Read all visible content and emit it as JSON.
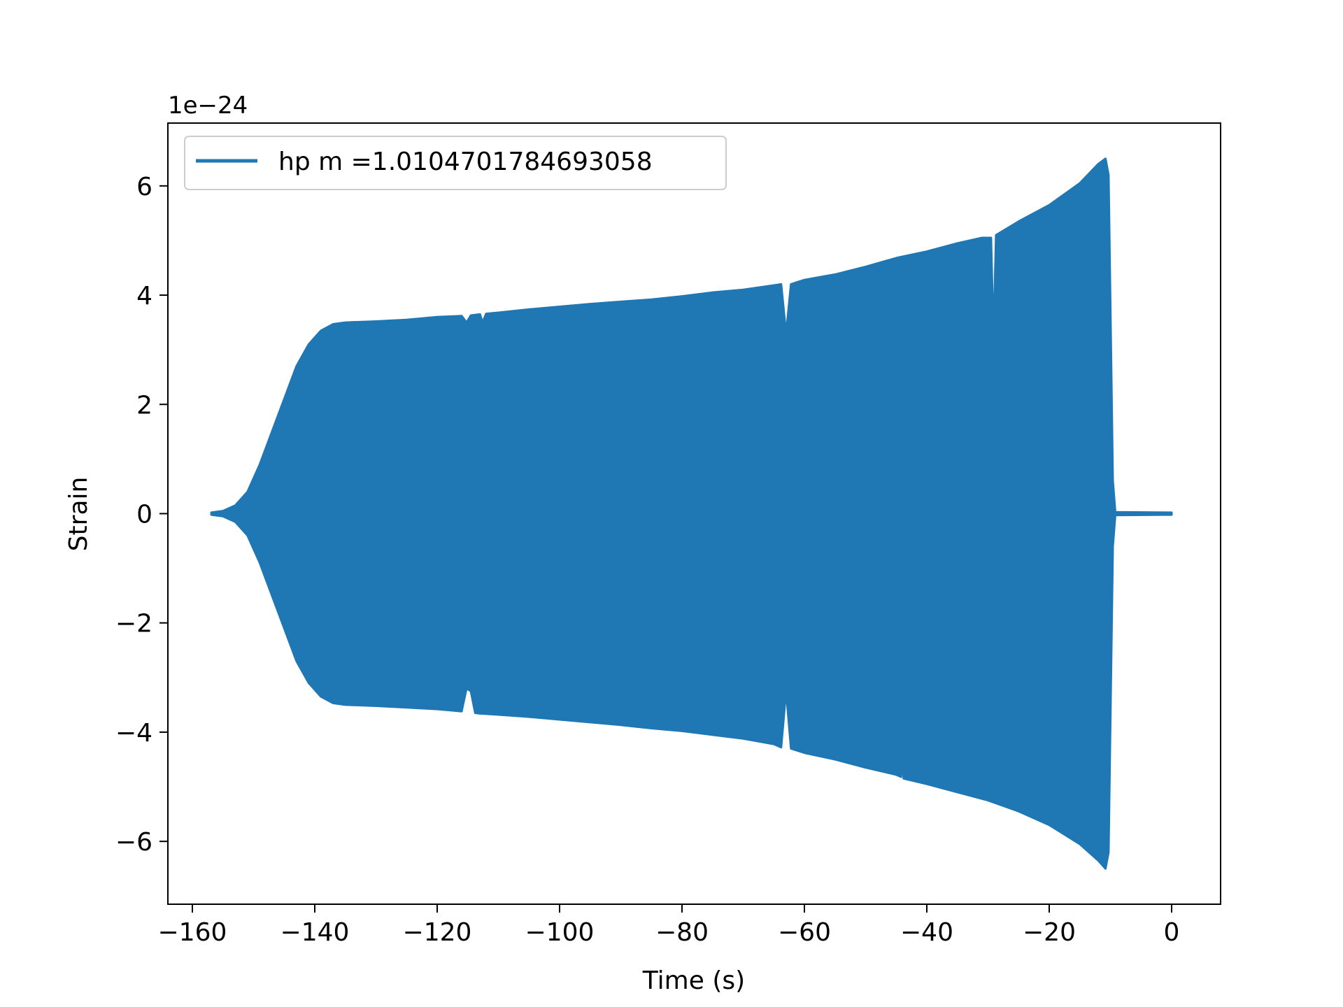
{
  "chart_data": {
    "type": "area",
    "title": "",
    "xlabel": "Time (s)",
    "ylabel": "Strain",
    "y_scale_label": "1e−24",
    "xlim": [
      -164,
      8
    ],
    "ylim": [
      -7.15,
      7.15
    ],
    "x_ticks": [
      -160,
      -140,
      -120,
      -100,
      -80,
      -60,
      -40,
      -20,
      0
    ],
    "x_tick_labels": [
      "−160",
      "−140",
      "−120",
      "−100",
      "−80",
      "−60",
      "−40",
      "−20",
      "0"
    ],
    "y_ticks": [
      -6,
      -4,
      -2,
      0,
      2,
      4,
      6
    ],
    "y_tick_labels": [
      "−6",
      "−4",
      "−2",
      "0",
      "2",
      "4",
      "6"
    ],
    "grid": false,
    "legend_position": "top-left",
    "series": [
      {
        "name": "hp m =1.0104701784693058",
        "color": "#1f77b4",
        "envelope_upper": [
          [
            -156.9,
            0.02
          ],
          [
            -155,
            0.05
          ],
          [
            -153,
            0.15
          ],
          [
            -151,
            0.4
          ],
          [
            -149,
            0.9
          ],
          [
            -147,
            1.5
          ],
          [
            -145,
            2.1
          ],
          [
            -143,
            2.7
          ],
          [
            -141,
            3.1
          ],
          [
            -139,
            3.35
          ],
          [
            -137,
            3.47
          ],
          [
            -135,
            3.5
          ],
          [
            -130,
            3.52
          ],
          [
            -125,
            3.55
          ],
          [
            -120,
            3.6
          ],
          [
            -116,
            3.62
          ],
          [
            -115.2,
            3.5
          ],
          [
            -114.5,
            3.63
          ],
          [
            -113,
            3.65
          ],
          [
            -112.6,
            3.5
          ],
          [
            -112,
            3.66
          ],
          [
            -110,
            3.68
          ],
          [
            -105,
            3.74
          ],
          [
            -100,
            3.79
          ],
          [
            -95,
            3.84
          ],
          [
            -90,
            3.88
          ],
          [
            -85,
            3.92
          ],
          [
            -80,
            3.98
          ],
          [
            -75,
            4.05
          ],
          [
            -70,
            4.1
          ],
          [
            -65,
            4.18
          ],
          [
            -63.8,
            4.2
          ],
          [
            -63,
            3.3
          ],
          [
            -62.2,
            4.2
          ],
          [
            -60,
            4.28
          ],
          [
            -55,
            4.38
          ],
          [
            -50,
            4.52
          ],
          [
            -45,
            4.68
          ],
          [
            -40,
            4.8
          ],
          [
            -35,
            4.95
          ],
          [
            -31,
            5.05
          ],
          [
            -29.5,
            5.05
          ],
          [
            -29.1,
            3.2
          ],
          [
            -28.7,
            5.1
          ],
          [
            -25,
            5.35
          ],
          [
            -20,
            5.65
          ],
          [
            -15,
            6.05
          ],
          [
            -12,
            6.4
          ],
          [
            -10.8,
            6.5
          ],
          [
            -10.3,
            6.2
          ],
          [
            -9.6,
            0.6
          ],
          [
            -9.2,
            0.03
          ],
          [
            0,
            0.02
          ]
        ],
        "envelope_lower": [
          [
            -156.9,
            -0.02
          ],
          [
            -155,
            -0.05
          ],
          [
            -153,
            -0.15
          ],
          [
            -151,
            -0.4
          ],
          [
            -149,
            -0.9
          ],
          [
            -147,
            -1.5
          ],
          [
            -145,
            -2.1
          ],
          [
            -143,
            -2.7
          ],
          [
            -141,
            -3.1
          ],
          [
            -139,
            -3.35
          ],
          [
            -137,
            -3.47
          ],
          [
            -135,
            -3.5
          ],
          [
            -130,
            -3.52
          ],
          [
            -125,
            -3.55
          ],
          [
            -120,
            -3.58
          ],
          [
            -116,
            -3.62
          ],
          [
            -115.2,
            -3.2
          ],
          [
            -114.5,
            -3.25
          ],
          [
            -113.8,
            -3.65
          ],
          [
            -113,
            -3.66
          ],
          [
            -110,
            -3.68
          ],
          [
            -105,
            -3.72
          ],
          [
            -100,
            -3.77
          ],
          [
            -95,
            -3.82
          ],
          [
            -90,
            -3.87
          ],
          [
            -85,
            -3.93
          ],
          [
            -80,
            -3.98
          ],
          [
            -75,
            -4.05
          ],
          [
            -70,
            -4.12
          ],
          [
            -65,
            -4.22
          ],
          [
            -63.8,
            -4.28
          ],
          [
            -63,
            -3.25
          ],
          [
            -62.2,
            -4.3
          ],
          [
            -60,
            -4.38
          ],
          [
            -55,
            -4.5
          ],
          [
            -50,
            -4.65
          ],
          [
            -45,
            -4.78
          ],
          [
            -44.2,
            -4.82
          ],
          [
            -44,
            -4.3
          ],
          [
            -43.8,
            -4.85
          ],
          [
            -40,
            -4.95
          ],
          [
            -35,
            -5.1
          ],
          [
            -30,
            -5.25
          ],
          [
            -25,
            -5.45
          ],
          [
            -20,
            -5.7
          ],
          [
            -15,
            -6.05
          ],
          [
            -12,
            -6.35
          ],
          [
            -10.8,
            -6.5
          ],
          [
            -10.3,
            -6.2
          ],
          [
            -9.6,
            -0.6
          ],
          [
            -9.2,
            -0.03
          ],
          [
            0,
            -0.02
          ]
        ]
      }
    ]
  }
}
